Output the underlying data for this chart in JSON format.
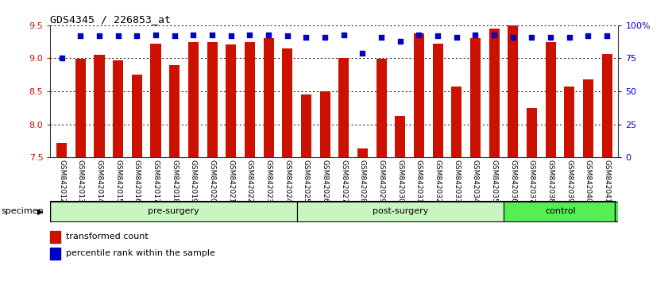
{
  "title": "GDS4345 / 226853_at",
  "samples": [
    "GSM842012",
    "GSM842013",
    "GSM842014",
    "GSM842015",
    "GSM842016",
    "GSM842017",
    "GSM842018",
    "GSM842019",
    "GSM842020",
    "GSM842021",
    "GSM842022",
    "GSM842023",
    "GSM842024",
    "GSM842025",
    "GSM842026",
    "GSM842027",
    "GSM842028",
    "GSM842029",
    "GSM842030",
    "GSM842031",
    "GSM842032",
    "GSM842033",
    "GSM842034",
    "GSM842035",
    "GSM842036",
    "GSM842037",
    "GSM842038",
    "GSM842039",
    "GSM842040",
    "GSM842041"
  ],
  "bar_values": [
    7.72,
    8.99,
    9.05,
    8.97,
    8.75,
    9.22,
    8.9,
    9.25,
    9.25,
    9.21,
    9.25,
    9.3,
    9.15,
    8.45,
    8.5,
    9.01,
    7.63,
    8.99,
    8.13,
    9.38,
    9.22,
    8.57,
    9.3,
    9.45,
    9.5,
    8.25,
    9.25,
    8.57,
    8.68,
    9.07
  ],
  "percentile_values": [
    75,
    92,
    92,
    92,
    92,
    93,
    92,
    93,
    93,
    92,
    93,
    93,
    92,
    91,
    91,
    93,
    79,
    91,
    88,
    93,
    92,
    91,
    93,
    93,
    91,
    91,
    91,
    91,
    92,
    92
  ],
  "groups": [
    {
      "label": "pre-surgery",
      "start": 0,
      "end": 13
    },
    {
      "label": "post-surgery",
      "start": 13,
      "end": 24
    },
    {
      "label": "control",
      "start": 24,
      "end": 30
    }
  ],
  "ylim": [
    7.5,
    9.5
  ],
  "yticks_left": [
    7.5,
    8.0,
    8.5,
    9.0,
    9.5
  ],
  "yticks_right": [
    0,
    25,
    50,
    75,
    100
  ],
  "right_ylabels": [
    "0",
    "25",
    "50",
    "75",
    "100%"
  ],
  "bar_color": "#CC1100",
  "dot_color": "#0000CC",
  "bg_color": "#FFFFFF",
  "group_light_color": "#C8F5C0",
  "group_dark_color": "#55EE55",
  "xtick_bg_color": "#CCCCCC",
  "legend_items": [
    "transformed count",
    "percentile rank within the sample"
  ],
  "legend_colors": [
    "#CC1100",
    "#0000CC"
  ]
}
